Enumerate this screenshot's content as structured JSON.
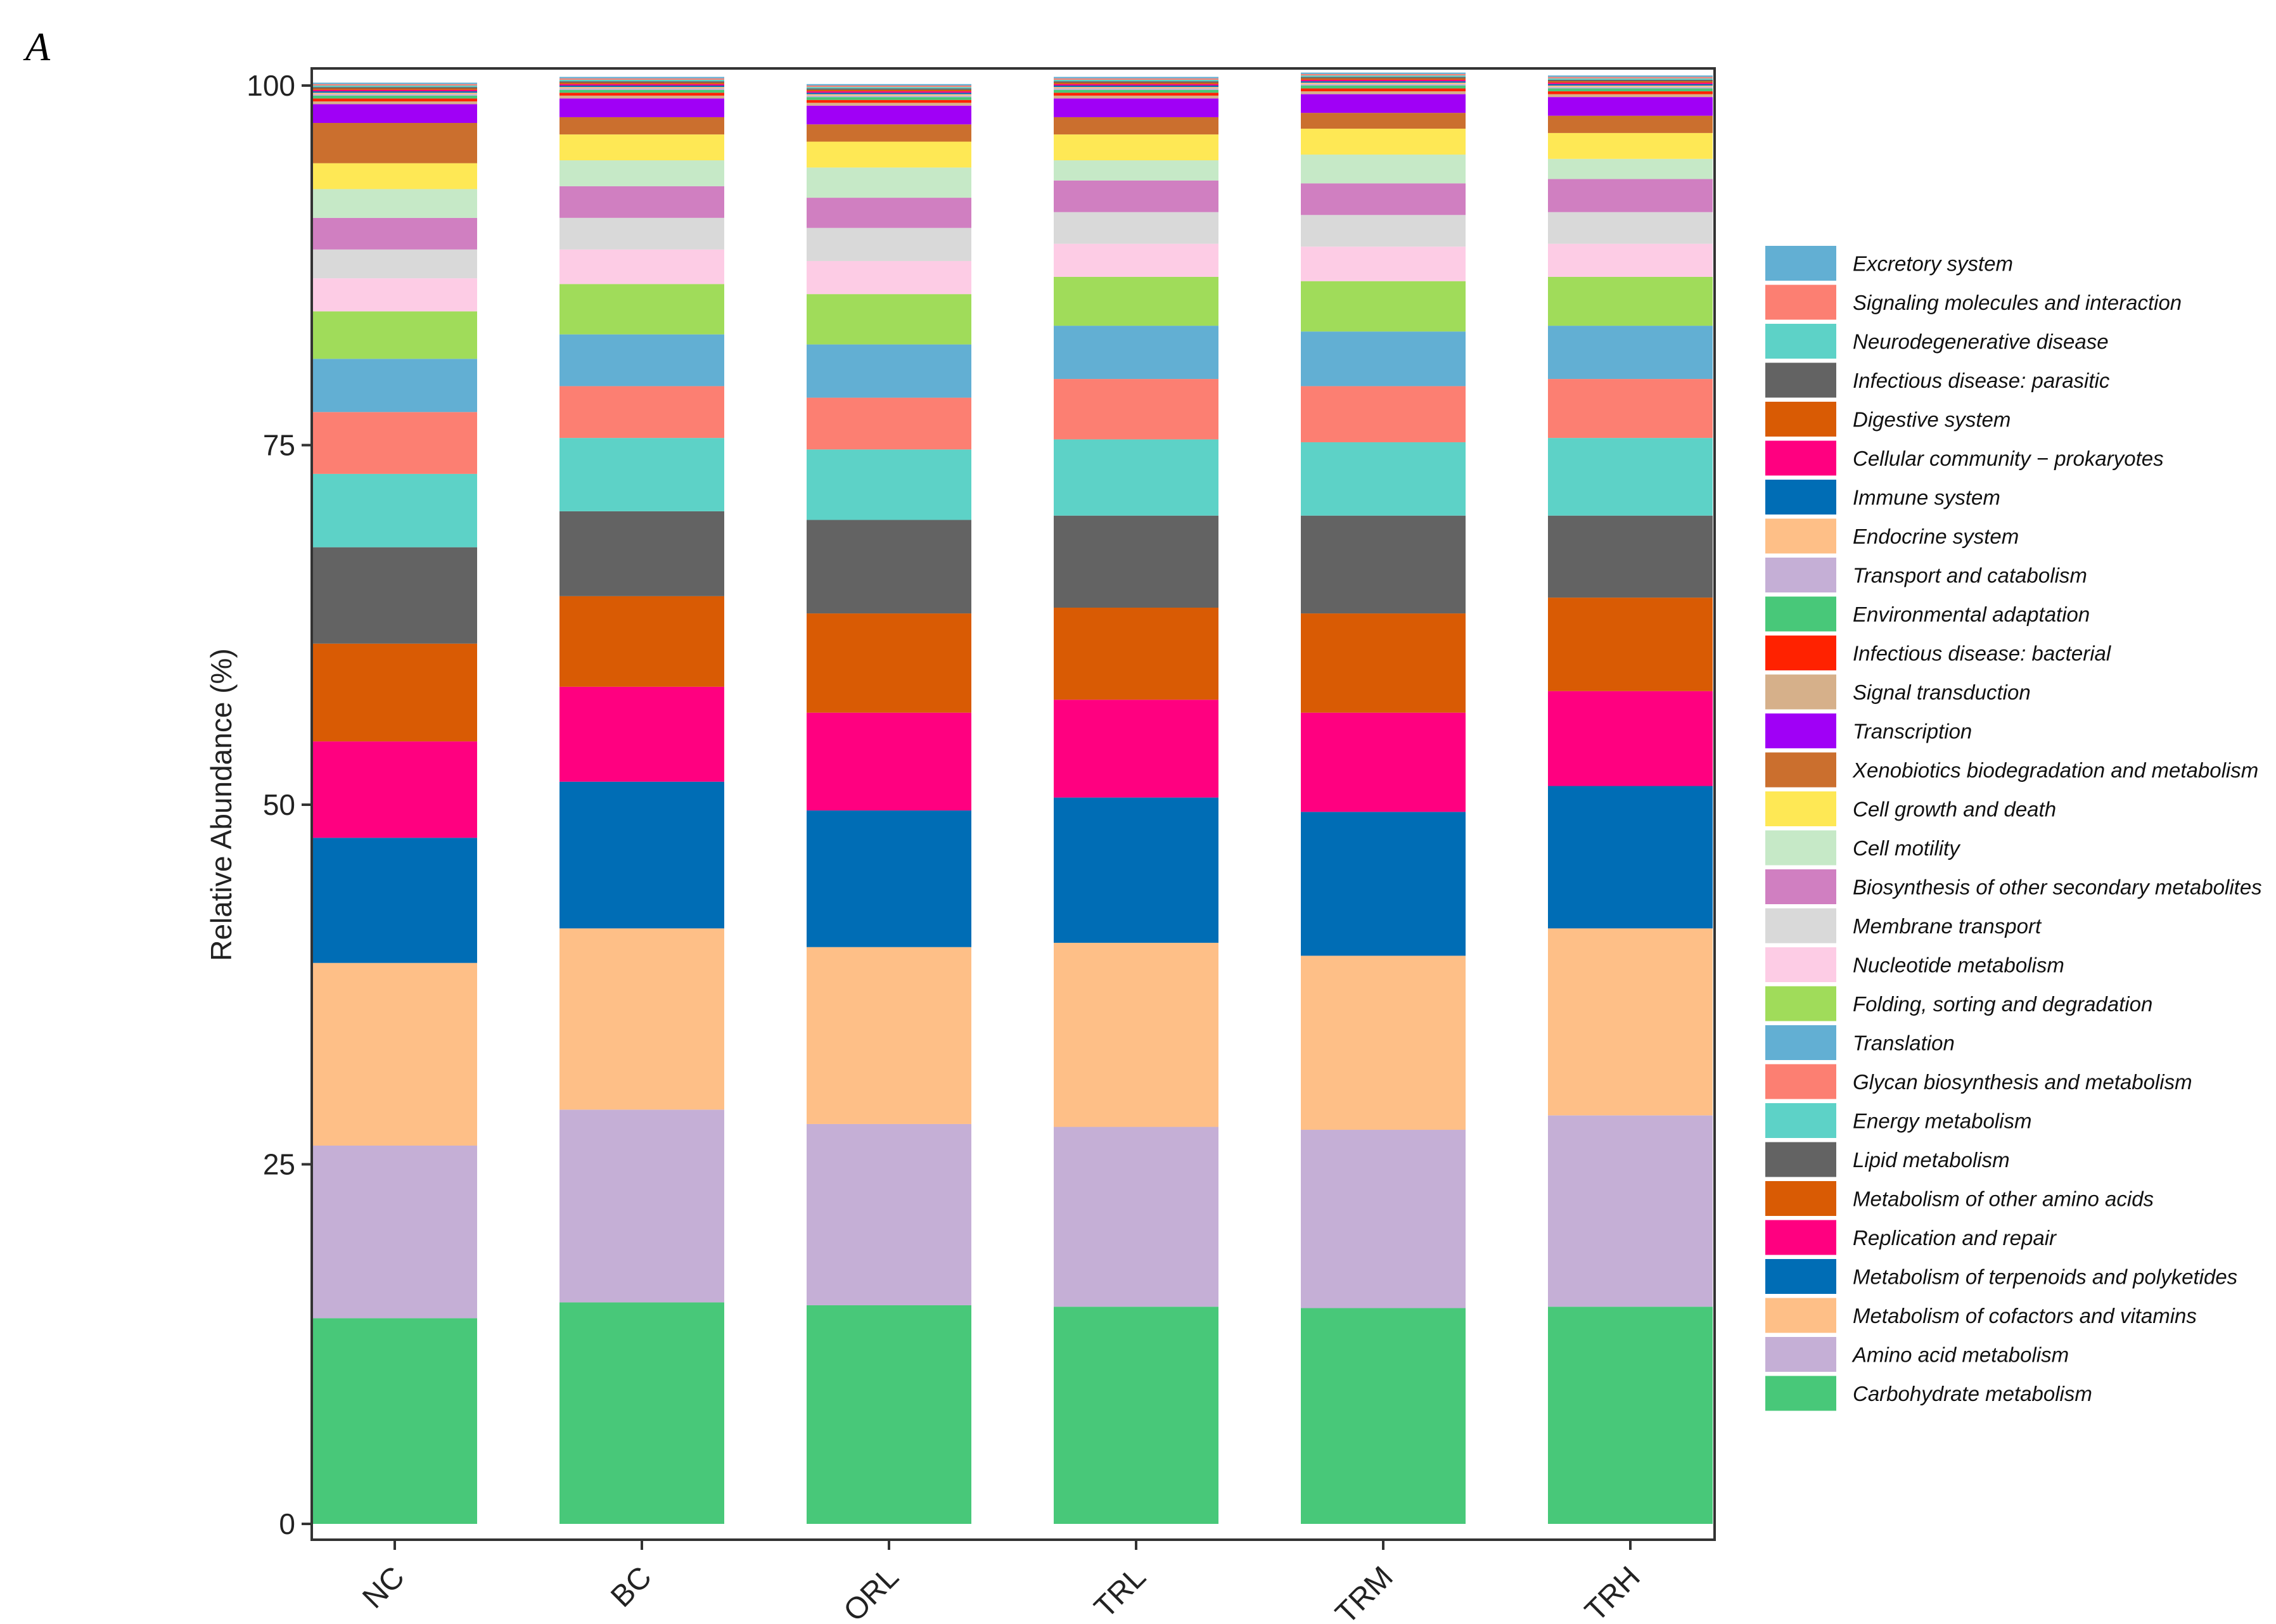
{
  "panel_label": "A",
  "chart_data": {
    "type": "bar",
    "stacked": true,
    "title": "",
    "xlabel": "",
    "ylabel": "Relative Abundance (%)",
    "ylim": [
      0,
      100
    ],
    "yticks": [
      0,
      25,
      50,
      75,
      100
    ],
    "categories": [
      "NC",
      "BC",
      "ORL",
      "TRL",
      "TRM",
      "TRH"
    ],
    "series": [
      {
        "name": "Carbohydrate metabolism",
        "color": "#48C879",
        "values": [
          14.3,
          15.4,
          15.2,
          15.1,
          15.0,
          15.1
        ]
      },
      {
        "name": "Amino acid metabolism",
        "color": "#C5AFD6",
        "values": [
          12.0,
          13.4,
          12.6,
          12.5,
          12.4,
          13.3
        ]
      },
      {
        "name": "Metabolism of cofactors and vitamins",
        "color": "#FEBF87",
        "values": [
          12.7,
          12.6,
          12.3,
          12.8,
          12.1,
          13.0
        ]
      },
      {
        "name": "Metabolism of terpenoids and polyketides",
        "color": "#006DB5",
        "values": [
          8.7,
          10.2,
          9.5,
          10.1,
          10.0,
          9.9
        ]
      },
      {
        "name": "Replication and repair",
        "color": "#FF0080",
        "values": [
          6.7,
          6.6,
          6.8,
          6.8,
          6.9,
          6.6
        ]
      },
      {
        "name": "Metabolism of other amino acids",
        "color": "#D95B04",
        "values": [
          6.8,
          6.3,
          6.9,
          6.4,
          6.9,
          6.5
        ]
      },
      {
        "name": "Lipid metabolism",
        "color": "#636363",
        "values": [
          6.7,
          5.9,
          6.5,
          6.4,
          6.8,
          5.7
        ]
      },
      {
        "name": "Energy metabolism",
        "color": "#5DD2C7",
        "values": [
          5.1,
          5.1,
          4.9,
          5.3,
          5.1,
          5.4
        ]
      },
      {
        "name": "Glycan biosynthesis and metabolism",
        "color": "#FC7F72",
        "values": [
          4.3,
          3.6,
          3.6,
          4.2,
          3.9,
          4.1
        ]
      },
      {
        "name": "Translation",
        "color": "#62AFD3",
        "values": [
          3.7,
          3.6,
          3.7,
          3.7,
          3.8,
          3.7
        ]
      },
      {
        "name": "Folding, sorting and degradation",
        "color": "#A0DC5A",
        "values": [
          3.3,
          3.5,
          3.5,
          3.4,
          3.5,
          3.4
        ]
      },
      {
        "name": "Nucleotide metabolism",
        "color": "#FDCCE5",
        "values": [
          2.3,
          2.4,
          2.3,
          2.3,
          2.4,
          2.3
        ]
      },
      {
        "name": "Membrane transport",
        "color": "#D9D9D9",
        "values": [
          2.0,
          2.2,
          2.3,
          2.2,
          2.2,
          2.2
        ]
      },
      {
        "name": "Biosynthesis of other secondary metabolites",
        "color": "#D07FC1",
        "values": [
          2.2,
          2.2,
          2.1,
          2.2,
          2.2,
          2.3
        ]
      },
      {
        "name": "Cell motility",
        "color": "#C6E9C7",
        "values": [
          2.0,
          1.8,
          2.1,
          1.4,
          2.0,
          1.4
        ]
      },
      {
        "name": "Cell growth and death",
        "color": "#FEE855",
        "values": [
          1.8,
          1.8,
          1.8,
          1.8,
          1.8,
          1.8
        ]
      },
      {
        "name": "Xenobiotics biodegradation and metabolism",
        "color": "#CB6F2E",
        "values": [
          2.8,
          1.2,
          1.2,
          1.2,
          1.1,
          1.2
        ]
      },
      {
        "name": "Transcription",
        "color": "#A000F6",
        "values": [
          1.3,
          1.3,
          1.3,
          1.3,
          1.3,
          1.3
        ]
      },
      {
        "name": "Signal transduction",
        "color": "#D6B08A",
        "values": [
          0.2,
          0.2,
          0.2,
          0.2,
          0.2,
          0.2
        ]
      },
      {
        "name": "Infectious disease: bacterial",
        "color": "#FF2200",
        "values": [
          0.2,
          0.2,
          0.2,
          0.2,
          0.2,
          0.2
        ]
      },
      {
        "name": "Environmental adaptation",
        "color": "#48C879",
        "values": [
          0.2,
          0.2,
          0.2,
          0.2,
          0.2,
          0.2
        ]
      },
      {
        "name": "Transport and catabolism",
        "color": "#C5AFD6",
        "values": [
          0.1,
          0.1,
          0.1,
          0.1,
          0.1,
          0.1
        ]
      },
      {
        "name": "Endocrine system",
        "color": "#FEBF87",
        "values": [
          0.1,
          0.1,
          0.1,
          0.1,
          0.1,
          0.1
        ]
      },
      {
        "name": "Immune system",
        "color": "#006DB5",
        "values": [
          0.1,
          0.1,
          0.1,
          0.1,
          0.1,
          0.1
        ]
      },
      {
        "name": "Cellular community − prokaryotes",
        "color": "#FF0080",
        "values": [
          0.1,
          0.1,
          0.1,
          0.1,
          0.1,
          0.1
        ]
      },
      {
        "name": "Digestive system",
        "color": "#D95B04",
        "values": [
          0.1,
          0.1,
          0.1,
          0.1,
          0.1,
          0.1
        ]
      },
      {
        "name": "Infectious disease: parasitic",
        "color": "#636363",
        "values": [
          0.1,
          0.1,
          0.1,
          0.1,
          0.1,
          0.1
        ]
      },
      {
        "name": "Neurodegenerative disease",
        "color": "#5DD2C7",
        "values": [
          0.1,
          0.1,
          0.1,
          0.1,
          0.1,
          0.1
        ]
      },
      {
        "name": "Signaling molecules and interaction",
        "color": "#FC7F72",
        "values": [
          0.1,
          0.1,
          0.1,
          0.1,
          0.1,
          0.1
        ]
      },
      {
        "name": "Excretory system",
        "color": "#62AFD3",
        "values": [
          0.1,
          0.1,
          0.1,
          0.1,
          0.1,
          0.1
        ]
      }
    ],
    "legend": {
      "placement": "right",
      "order": [
        "Excretory system",
        "Signaling molecules and interaction",
        "Neurodegenerative disease",
        "Infectious disease: parasitic",
        "Digestive system",
        "Cellular community − prokaryotes",
        "Immune system",
        "Endocrine system",
        "Transport and catabolism",
        "Environmental adaptation",
        "Infectious disease: bacterial",
        "Signal transduction",
        "Transcription",
        "Xenobiotics biodegradation and metabolism",
        "Cell growth and death",
        "Cell motility",
        "Biosynthesis of other secondary metabolites",
        "Membrane transport",
        "Nucleotide metabolism",
        "Folding, sorting and degradation",
        "Translation",
        "Glycan biosynthesis and metabolism",
        "Energy metabolism",
        "Lipid metabolism",
        "Metabolism of other amino acids",
        "Replication and repair",
        "Metabolism of terpenoids and polyketides",
        "Metabolism of cofactors and vitamins",
        "Amino acid metabolism",
        "Carbohydrate metabolism"
      ]
    }
  }
}
